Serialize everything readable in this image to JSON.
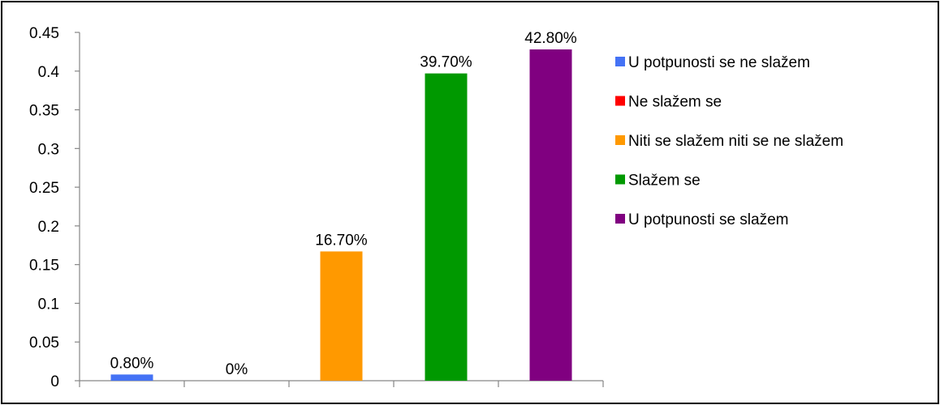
{
  "chart_data": {
    "type": "bar",
    "title": "",
    "xlabel": "",
    "ylabel": "",
    "ylim": [
      0,
      0.45
    ],
    "yticks": [
      "0",
      "0.05",
      "0.1",
      "0.15",
      "0.2",
      "0.25",
      "0.3",
      "0.35",
      "0.4",
      "0.45"
    ],
    "grid": false,
    "legend_position": "right",
    "series": [
      {
        "name": "U potpunosti se ne slažem",
        "value": 0.008,
        "label": "0.80%",
        "color": "#4472F5"
      },
      {
        "name": "Ne slažem se",
        "value": 0.0,
        "label": "0%",
        "color": "#FF0000"
      },
      {
        "name": "Niti se slažem niti se ne slažem",
        "value": 0.167,
        "label": "16.70%",
        "color": "#FF9900"
      },
      {
        "name": "Slažem se",
        "value": 0.397,
        "label": "39.70%",
        "color": "#009900"
      },
      {
        "name": "U potpunosti se slažem",
        "value": 0.428,
        "label": "42.80%",
        "color": "#800080"
      }
    ]
  }
}
